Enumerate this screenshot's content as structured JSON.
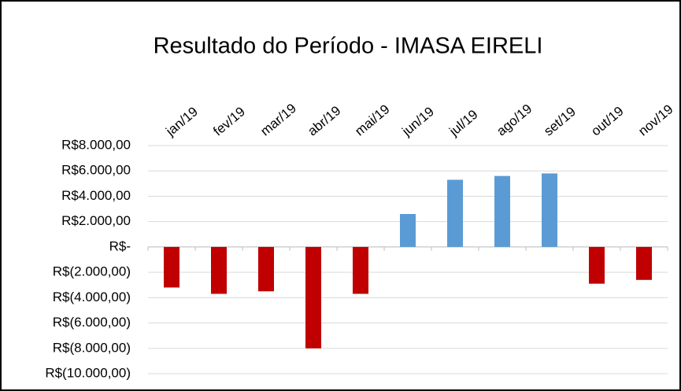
{
  "chart_data": {
    "type": "bar",
    "title": "Resultado do Período - IMASA EIRELI",
    "categories": [
      "jan/19",
      "fev/19",
      "mar/19",
      "abr/19",
      "mai/19",
      "jun/19",
      "jul/19",
      "ago/19",
      "set/19",
      "out/19",
      "nov/19"
    ],
    "values": [
      -3200,
      -3700,
      -3500,
      -8000,
      -3700,
      2600,
      5300,
      5600,
      5800,
      -2900,
      -2600
    ],
    "color": "#5b9bd5",
    "negative_color": "#c00000",
    "ylim": [
      -10000,
      8000
    ],
    "yticks": [
      {
        "value": -10000,
        "label": "R$(10.000,00)"
      },
      {
        "value": -8000,
        "label": "R$(8.000,00)"
      },
      {
        "value": -6000,
        "label": "R$(6.000,00)"
      },
      {
        "value": -4000,
        "label": "R$(4.000,00)"
      },
      {
        "value": -2000,
        "label": "R$(2.000,00)"
      },
      {
        "value": 0,
        "label": "R$-"
      },
      {
        "value": 2000,
        "label": "R$2.000,00"
      },
      {
        "value": 4000,
        "label": "R$4.000,00"
      },
      {
        "value": 6000,
        "label": "R$6.000,00"
      },
      {
        "value": 8000,
        "label": "R$8.000,00"
      }
    ],
    "grid": true
  }
}
